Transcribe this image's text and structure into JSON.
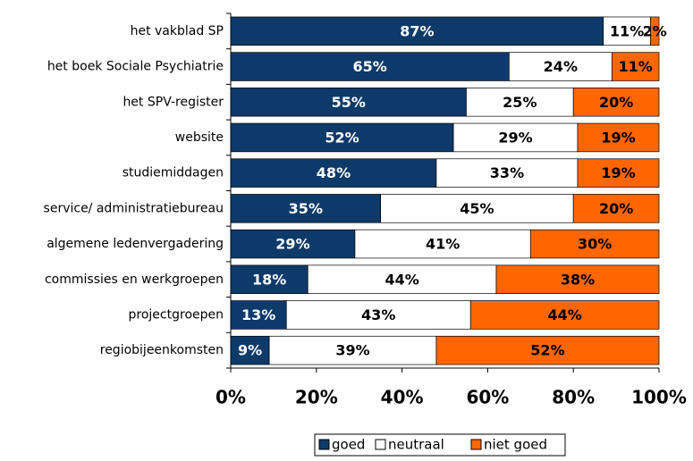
{
  "chart_data": {
    "type": "stacked-barh",
    "categories": [
      "het vakblad SP",
      "het boek Sociale Psychiatrie",
      "het SPV-register",
      "website",
      "studiemiddagen",
      "service/ administratiebureau",
      "algemene ledenvergadering",
      "commissies en werkgroepen",
      "projectgroepen",
      "regiobijeenkomsten"
    ],
    "series": [
      {
        "name": "goed",
        "color": "#0e3a6a",
        "values": [
          87,
          65,
          55,
          52,
          48,
          35,
          29,
          18,
          13,
          9
        ],
        "value_labels": [
          "87%",
          "65%",
          "55%",
          "52%",
          "48%",
          "35%",
          "29%",
          "18%",
          "13%",
          "9%"
        ]
      },
      {
        "name": "neutraal",
        "color": "#ffffff",
        "values": [
          11,
          24,
          25,
          29,
          33,
          45,
          41,
          44,
          43,
          39
        ],
        "value_labels": [
          "11%",
          "24%",
          "25%",
          "29%",
          "33%",
          "45%",
          "41%",
          "44%",
          "43%",
          "39%"
        ]
      },
      {
        "name": "niet goed",
        "color": "#ff6600",
        "values": [
          2,
          11,
          20,
          19,
          19,
          20,
          30,
          38,
          44,
          52
        ],
        "value_labels": [
          "2%",
          "11%",
          "20%",
          "19%",
          "19%",
          "20%",
          "30%",
          "38%",
          "44%",
          "52%"
        ]
      }
    ],
    "xlim": [
      0,
      100
    ],
    "xticks": [
      {
        "value": 0,
        "label": "0%"
      },
      {
        "value": 20,
        "label": "20%"
      },
      {
        "value": 40,
        "label": "40%"
      },
      {
        "value": 60,
        "label": "60%"
      },
      {
        "value": 80,
        "label": "80%"
      },
      {
        "value": 100,
        "label": "100%"
      }
    ],
    "legend": "bottom"
  }
}
